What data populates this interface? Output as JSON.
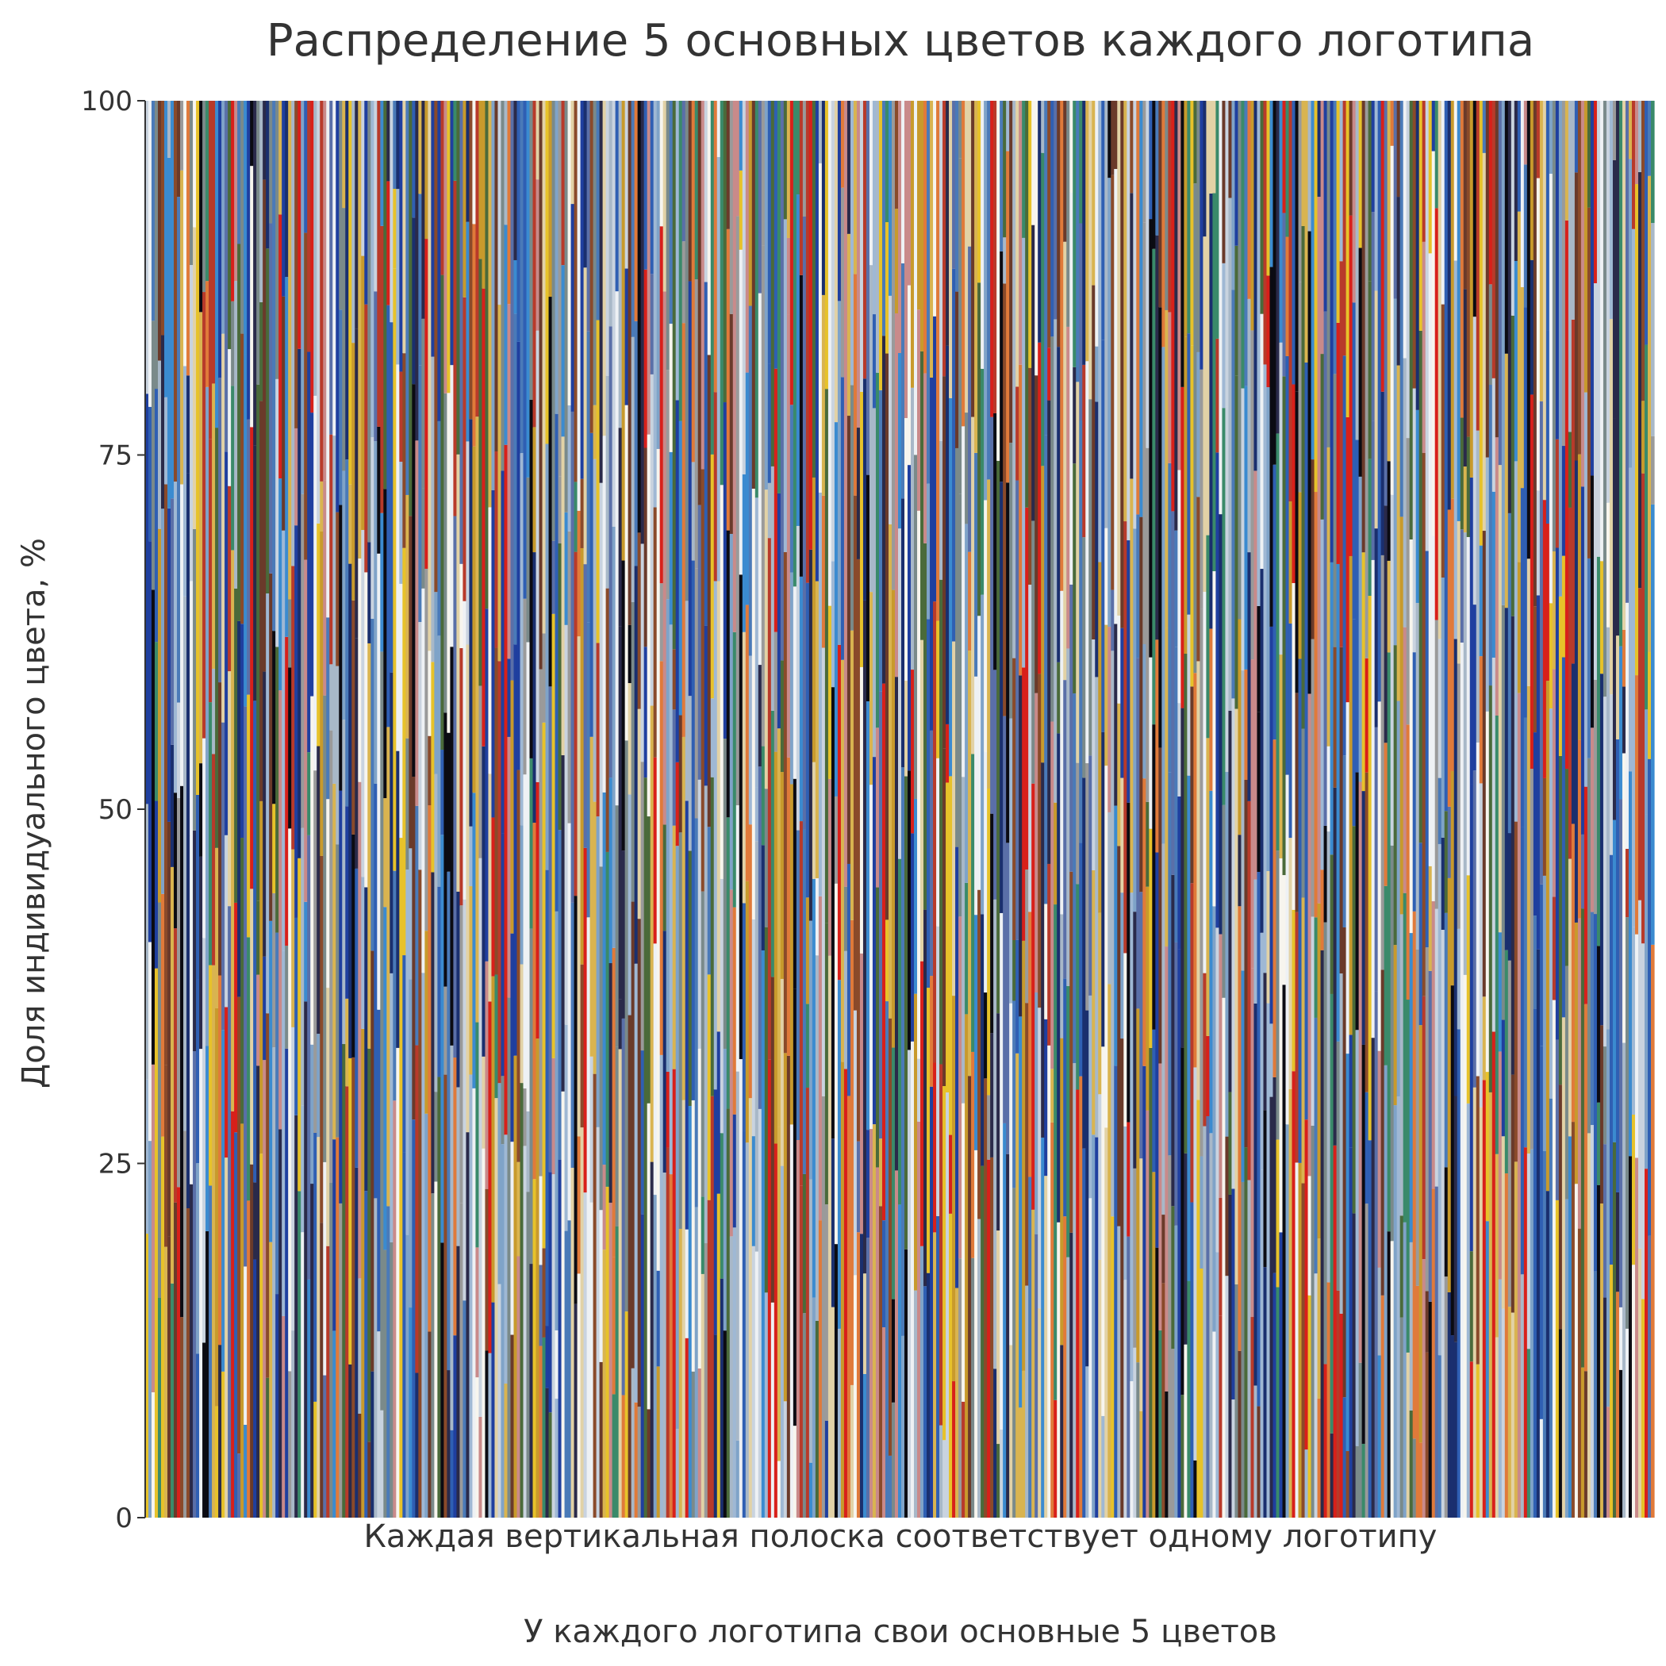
{
  "chart_data": {
    "type": "bar",
    "stacked": true,
    "title": "Распределение 5 основных цветов каждого логотипа",
    "ylabel": "Доля индивидуального цвета, %",
    "xlabel_lines": [
      "Каждая вертикальная полоска соответствует одному логотипу",
      "У каждого логотипа свои основные 5 цветов"
    ],
    "ylim": [
      0,
      100
    ],
    "yticks": [
      0,
      25,
      50,
      75,
      100
    ],
    "ytick_labels": [
      "0",
      "25",
      "50",
      "75",
      "100"
    ],
    "grid": false,
    "legend": false,
    "colors_per_logo": 5,
    "palette": [
      "#0b0b12",
      "#1a2f6e",
      "#2f5fb3",
      "#3b8bd0",
      "#5a6fa8",
      "#7fa3c8",
      "#9fb8d4",
      "#c9d3df",
      "#eef1f4",
      "#f7f5ee",
      "#e2d2a6",
      "#d9b450",
      "#c89a2c",
      "#e7c22a",
      "#d8201a",
      "#b83a2a",
      "#e07a3a",
      "#8a4a2a",
      "#6a3a2a",
      "#4a6a3a",
      "#3a8a6a",
      "#7a8a8a",
      "#9a9a9a",
      "#c98a8a",
      "#2a2a4a",
      "#1f3f9f",
      "#4a7ab8",
      "#a8b8c8"
    ]
  }
}
